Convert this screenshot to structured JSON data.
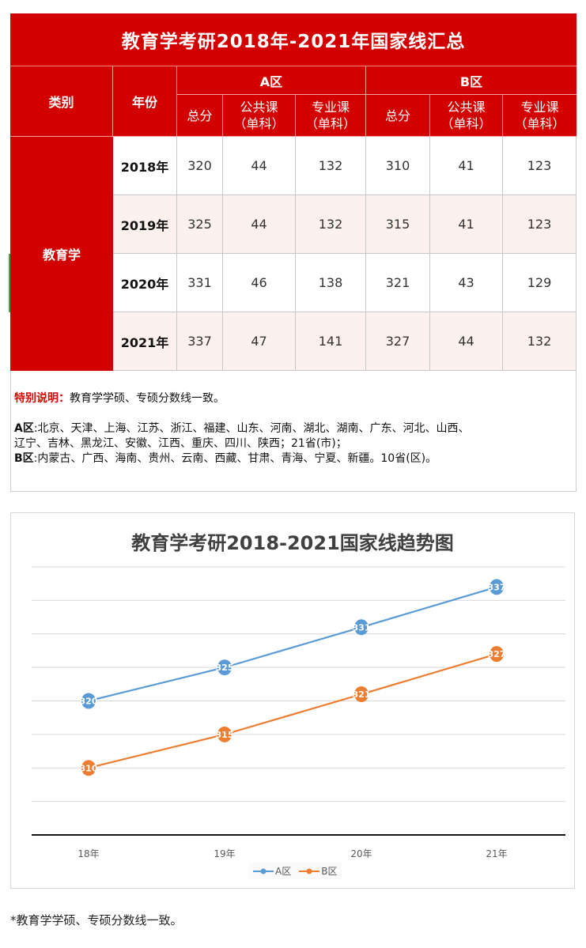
{
  "table": {
    "title": "教育学考研2018年-2021年国家线汇总",
    "headers": {
      "category": "类别",
      "year": "年份",
      "zone_a": "A区",
      "zone_b": "B区",
      "total": "总分",
      "public_course": "公共课",
      "public_course_sub": "（单科）",
      "major_course": "专业课",
      "major_course_sub": "（单科）"
    },
    "category_value": "教育学",
    "rows": [
      {
        "year": "2018年",
        "a_total": "320",
        "a_public": "44",
        "a_major": "132",
        "b_total": "310",
        "b_public": "41",
        "b_major": "123"
      },
      {
        "year": "2019年",
        "a_total": "325",
        "a_public": "44",
        "a_major": "132",
        "b_total": "315",
        "b_public": "41",
        "b_major": "123"
      },
      {
        "year": "2020年",
        "a_total": "331",
        "a_public": "46",
        "a_major": "138",
        "b_total": "321",
        "b_public": "43",
        "b_major": "129"
      },
      {
        "year": "2021年",
        "a_total": "337",
        "a_public": "47",
        "a_major": "141",
        "b_total": "327",
        "b_public": "44",
        "b_major": "132"
      }
    ],
    "note": {
      "label": "特别说明：",
      "text": "教育学学硕、专硕分数线一致。",
      "zone_a_label": "A区",
      "zone_a_line1": ":北京、天津、上海、江苏、浙江、福建、山东、河南、湖北、湖南、广东、河北、山西、",
      "zone_a_line2": "辽宁、吉林、黑龙江、安徽、江西、重庆、四川、陕西；21省(市)；",
      "zone_b_label": "B区",
      "zone_b_line": ":内蒙古、广西、海南、贵州、云南、西藏、甘肃、青海、宁夏、新疆。10省(区)。"
    },
    "colors": {
      "header_red": "#d30000",
      "alt_row": "#fcf1ec",
      "note_red": "#e00000"
    }
  },
  "chart_data": {
    "type": "line",
    "title": "教育学考研2018-2021国家线趋势图",
    "categories": [
      "18年",
      "19年",
      "20年",
      "21年"
    ],
    "series": [
      {
        "name": "A区",
        "color": "#5b9bd5",
        "values": [
          320,
          325,
          331,
          337
        ]
      },
      {
        "name": "B区",
        "color": "#ed7d31",
        "values": [
          310,
          315,
          321,
          327
        ]
      }
    ],
    "xlabel": "",
    "ylabel": "",
    "ylim": [
      300,
      340
    ],
    "y_gridline_step": 5,
    "y_tick_labels_visible": false,
    "grid": true,
    "data_labels": true,
    "legend_position": "bottom"
  },
  "footnote": "*教育学学硕、专硕分数线一致。"
}
